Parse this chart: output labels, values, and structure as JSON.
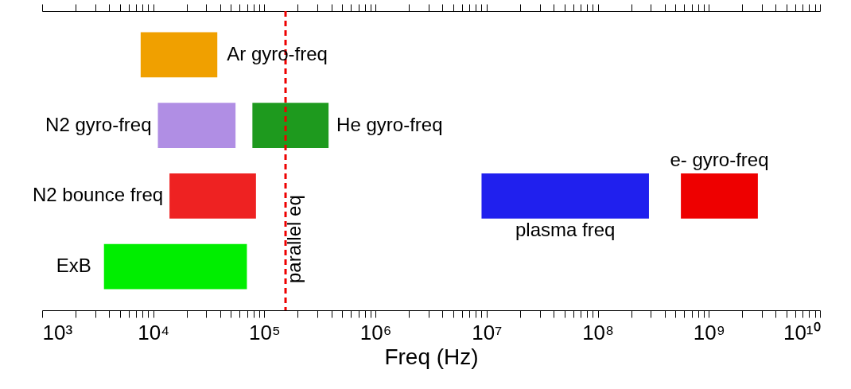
{
  "chart_data": {
    "type": "bar",
    "orientation": "horizontal",
    "xlabel": "Freq (Hz)",
    "log": "x",
    "grid": false,
    "categories": [
      null,
      null,
      null,
      null
    ],
    "series": [
      {
        "name": "Ar gyro-freq",
        "color": "#f0a000",
        "base": [
          7700,
          null,
          null,
          null
        ],
        "values": [
          30000,
          null,
          null,
          null
        ]
      },
      {
        "name": "N2 gyro-freq",
        "color": "#b08ee4",
        "base": [
          null,
          11000,
          null,
          null
        ],
        "values": [
          null,
          44000,
          null,
          null
        ]
      },
      {
        "name": "He gyro-freq",
        "color": "#1e9a1e",
        "base": [
          null,
          78000,
          null,
          null
        ],
        "values": [
          null,
          300000,
          null,
          null
        ]
      },
      {
        "name": "N2 bounce freq",
        "color": "#ee2222",
        "base": [
          null,
          null,
          14000,
          null
        ],
        "values": [
          null,
          null,
          70000,
          null
        ]
      },
      {
        "name": "plasma freq",
        "color": "#2020ee",
        "base": [
          null,
          null,
          9000000,
          null
        ],
        "values": [
          null,
          null,
          280000000,
          null
        ]
      },
      {
        "name": "e- gyro-freq",
        "color": "#ee0000",
        "base": [
          null,
          null,
          560000000,
          null
        ],
        "values": [
          null,
          null,
          2200000000,
          null
        ]
      },
      {
        "name": "ExB",
        "color": "#00ee00",
        "base": [
          null,
          null,
          null,
          3600
        ],
        "values": [
          null,
          null,
          null,
          66000
        ]
      }
    ],
    "xlim": [
      1000,
      10000000000
    ],
    "xticks": [
      {
        "value": 1000,
        "label": "10³"
      },
      {
        "value": 2000,
        "label": null
      },
      {
        "value": 3000,
        "label": null
      },
      {
        "value": 4000,
        "label": null
      },
      {
        "value": 5000,
        "label": null
      },
      {
        "value": 6000,
        "label": null
      },
      {
        "value": 7000,
        "label": null
      },
      {
        "value": 8000,
        "label": null
      },
      {
        "value": 9000,
        "label": null
      },
      {
        "value": 10000,
        "label": "10⁴"
      },
      {
        "value": 20000,
        "label": null
      },
      {
        "value": 30000,
        "label": null
      },
      {
        "value": 40000,
        "label": null
      },
      {
        "value": 50000,
        "label": null
      },
      {
        "value": 60000,
        "label": null
      },
      {
        "value": 70000,
        "label": null
      },
      {
        "value": 80000,
        "label": null
      },
      {
        "value": 90000,
        "label": null
      },
      {
        "value": 100000,
        "label": "10⁵"
      },
      {
        "value": 200000,
        "label": null
      },
      {
        "value": 300000,
        "label": null
      },
      {
        "value": 400000,
        "label": null
      },
      {
        "value": 500000,
        "label": null
      },
      {
        "value": 600000,
        "label": null
      },
      {
        "value": 700000,
        "label": null
      },
      {
        "value": 800000,
        "label": null
      },
      {
        "value": 900000,
        "label": null
      },
      {
        "value": 1000000,
        "label": "10⁶"
      },
      {
        "value": 2000000,
        "label": null
      },
      {
        "value": 3000000,
        "label": null
      },
      {
        "value": 4000000,
        "label": null
      },
      {
        "value": 5000000,
        "label": null
      },
      {
        "value": 6000000,
        "label": null
      },
      {
        "value": 7000000,
        "label": null
      },
      {
        "value": 8000000,
        "label": null
      },
      {
        "value": 9000000,
        "label": null
      },
      {
        "value": 10000000,
        "label": "10⁷"
      },
      {
        "value": 20000000,
        "label": null
      },
      {
        "value": 30000000,
        "label": null
      },
      {
        "value": 40000000,
        "label": null
      },
      {
        "value": 50000000,
        "label": null
      },
      {
        "value": 60000000,
        "label": null
      },
      {
        "value": 70000000,
        "label": null
      },
      {
        "value": 80000000,
        "label": null
      },
      {
        "value": 90000000,
        "label": null
      },
      {
        "value": 100000000,
        "label": "10⁸"
      },
      {
        "value": 200000000,
        "label": null
      },
      {
        "value": 300000000,
        "label": null
      },
      {
        "value": 400000000,
        "label": null
      },
      {
        "value": 500000000,
        "label": null
      },
      {
        "value": 600000000,
        "label": null
      },
      {
        "value": 700000000,
        "label": null
      },
      {
        "value": 800000000,
        "label": null
      },
      {
        "value": 900000000,
        "label": null
      },
      {
        "value": 1000000000,
        "label": "10⁹"
      },
      {
        "value": 2000000000,
        "label": null
      },
      {
        "value": 3000000000,
        "label": null
      },
      {
        "value": 4000000000,
        "label": null
      },
      {
        "value": 5000000000,
        "label": null
      },
      {
        "value": 6000000000,
        "label": null
      },
      {
        "value": 7000000000,
        "label": null
      },
      {
        "value": 8000000000,
        "label": null
      },
      {
        "value": 9000000000,
        "label": null
      },
      {
        "value": 10000000000,
        "label": "10¹⁰"
      }
    ],
    "ref_lines": [
      {
        "axis": "x",
        "value": 155000,
        "label": "parallel eq",
        "color": "#ee0000",
        "line_style": "dashed"
      }
    ]
  }
}
